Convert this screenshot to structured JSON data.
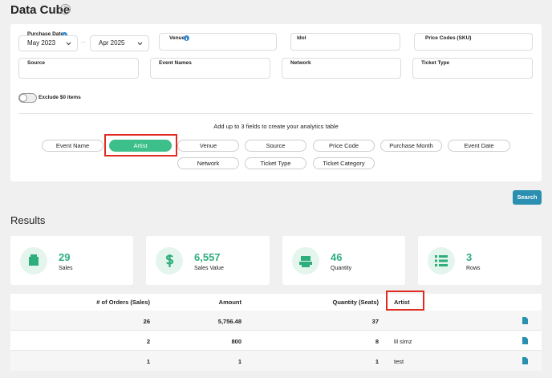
{
  "header": {
    "title": "Data Cube",
    "help": "?"
  },
  "filters": {
    "purchase_date": {
      "label": "Purchase Date",
      "from": "May 2023",
      "separator": "...",
      "to": "Apr 2025"
    },
    "row1": [
      "Venue",
      "Idol",
      "Price Codes (SKU)"
    ],
    "row2": [
      "Source",
      "Event Names",
      "Network",
      "Ticket Type"
    ],
    "toggle": "Exclude $0 items",
    "fields_hint": "Add up to 3 fields to create your analytics table",
    "fields": [
      "Event Name",
      "Artist",
      "Venue",
      "Source",
      "Price Code",
      "Purchase Month",
      "Event Date",
      "Network",
      "Ticket Type",
      "Ticket Category"
    ],
    "search": "Search"
  },
  "results": {
    "title": "Results",
    "stats": [
      {
        "value": 29,
        "label": "Sales"
      },
      {
        "value": "6,557",
        "label": "Sales Value"
      },
      {
        "value": 46,
        "label": "Quantity"
      },
      {
        "value": 3,
        "label": "Rows"
      }
    ],
    "table": {
      "headers": [
        "# of Orders (Sales)",
        "Amount",
        "Quantity (Seats)",
        "Artist"
      ],
      "rows": [
        [
          "26",
          "5,756.48",
          "37"
        ],
        [
          "2",
          "800",
          "8",
          "lil simz"
        ],
        [
          "1",
          "1",
          "1",
          "test"
        ]
      ]
    }
  }
}
